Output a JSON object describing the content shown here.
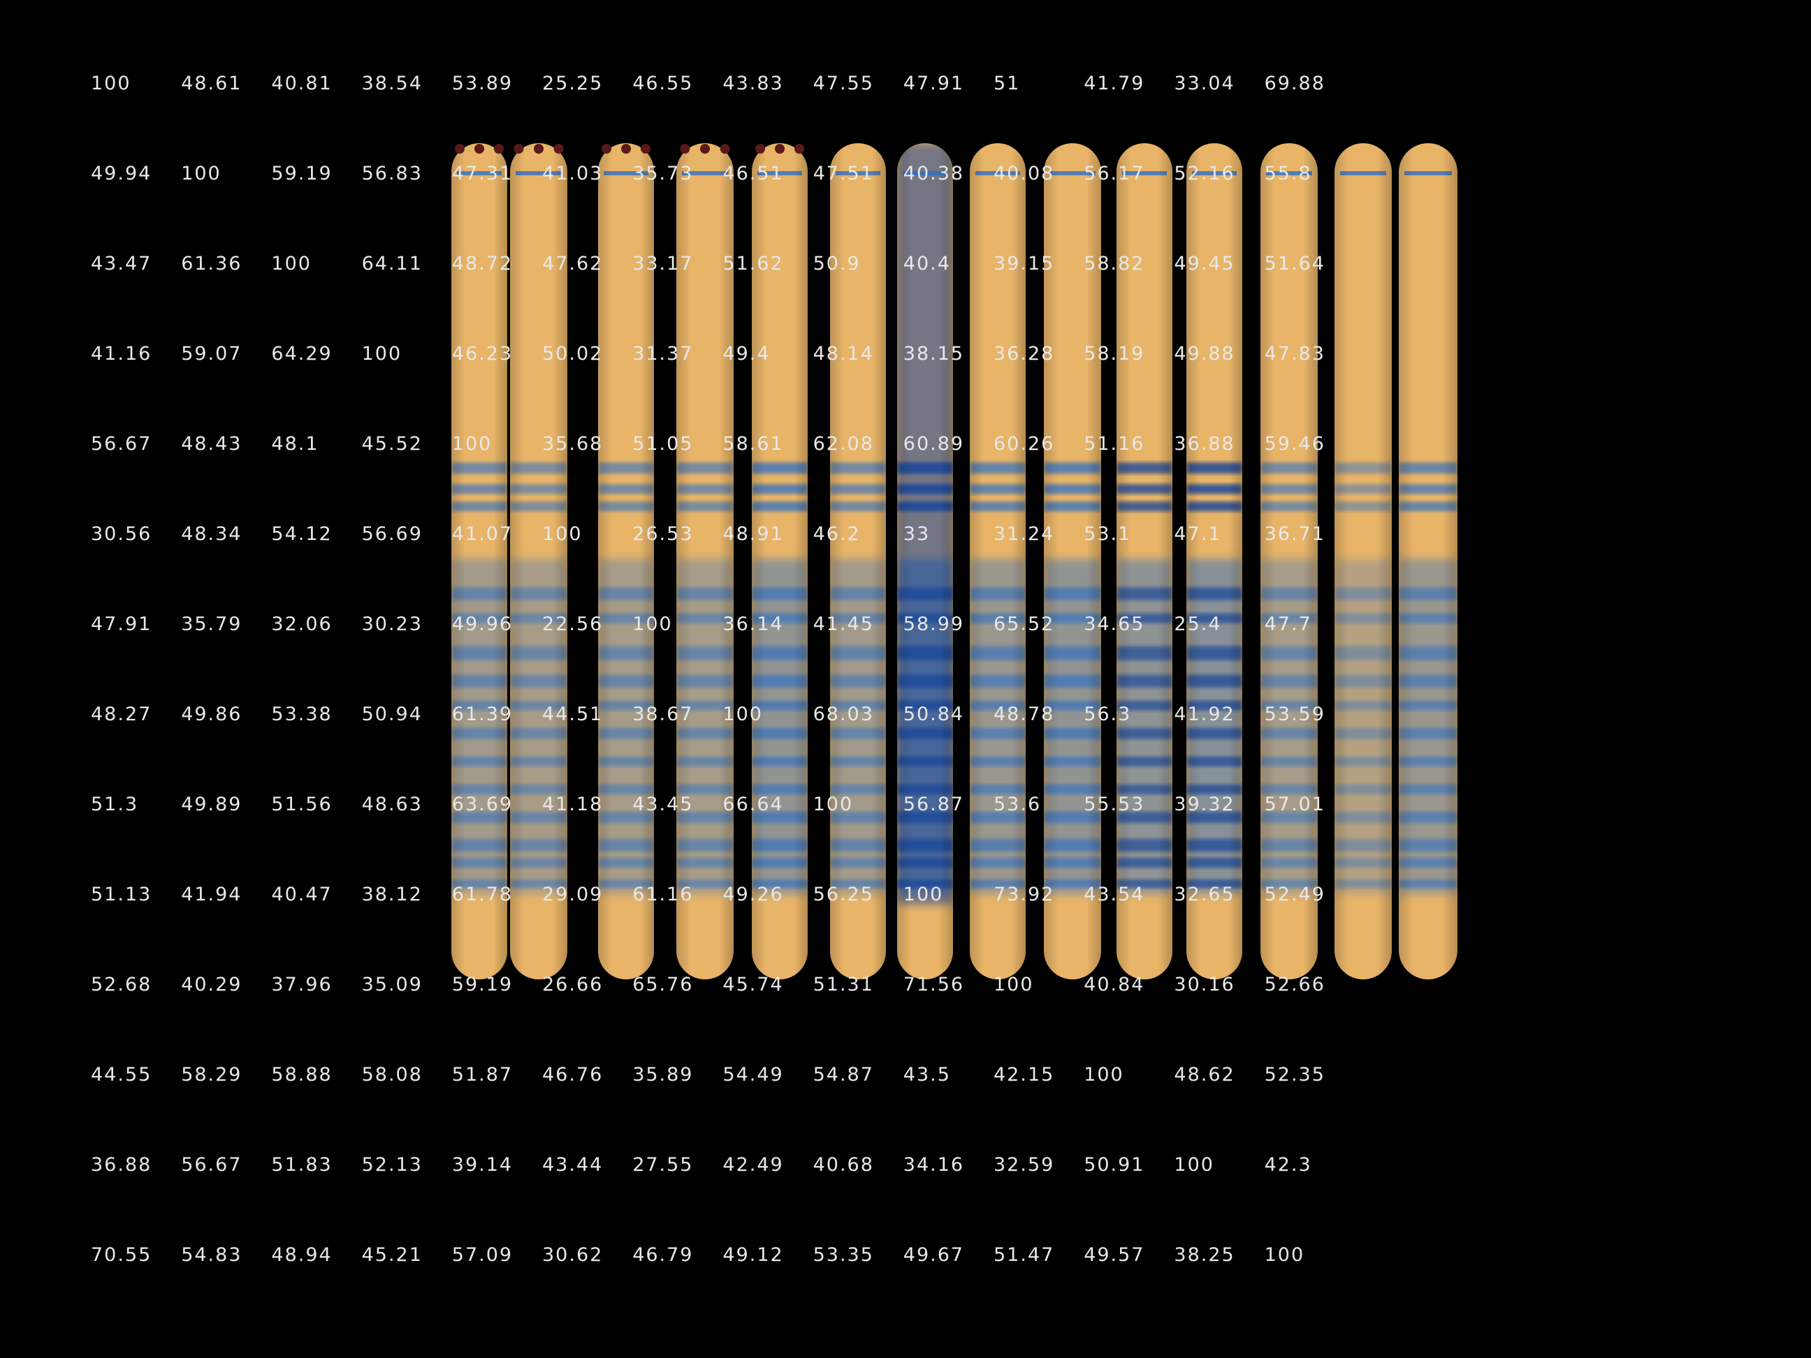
{
  "image": {
    "description_name": "gel-electrophoresis-tubes",
    "colors": {
      "background": "#000000",
      "gel_base": "#e8b468",
      "band_blue": "#2f6fc4",
      "dark_blue": "#14459b",
      "text": "#e8e8e8",
      "well_residue": "#5a1a1a"
    },
    "tube_count": 14
  },
  "matrix": {
    "rows": [
      [
        "100",
        "48.61",
        "40.81",
        "38.54",
        "53.89",
        "25.25",
        "46.55",
        "43.83",
        "47.55",
        "47.91",
        "51",
        "41.79",
        "33.04",
        "69.88"
      ],
      [
        "49.94",
        "100",
        "59.19",
        "56.83",
        "47.31",
        "41.03",
        "35.73",
        "46.51",
        "47.51",
        "40.38",
        "40.08",
        "56.17",
        "52.16",
        "55.8"
      ],
      [
        "43.47",
        "61.36",
        "100",
        "64.11",
        "48.72",
        "47.62",
        "33.17",
        "51.62",
        "50.9",
        "40.4",
        "39.15",
        "58.82",
        "49.45",
        "51.64"
      ],
      [
        "41.16",
        "59.07",
        "64.29",
        "100",
        "46.23",
        "50.02",
        "31.37",
        "49.4",
        "48.14",
        "38.15",
        "36.28",
        "58.19",
        "49.88",
        "47.83"
      ],
      [
        "56.67",
        "48.43",
        "48.1",
        "45.52",
        "100",
        "35.68",
        "51.05",
        "58.61",
        "62.08",
        "60.89",
        "60.26",
        "51.16",
        "36.88",
        "59.46"
      ],
      [
        "30.56",
        "48.34",
        "54.12",
        "56.69",
        "41.07",
        "100",
        "26.53",
        "48.91",
        "46.2",
        "33",
        "31.24",
        "53.1",
        "47.1",
        "36.71"
      ],
      [
        "47.91",
        "35.79",
        "32.06",
        "30.23",
        "49.96",
        "22.56",
        "100",
        "36.14",
        "41.45",
        "58.99",
        "65.52",
        "34.65",
        "25.4",
        "47.7"
      ],
      [
        "48.27",
        "49.86",
        "53.38",
        "50.94",
        "61.39",
        "44.51",
        "38.67",
        "100",
        "68.03",
        "50.84",
        "48.78",
        "56.3",
        "41.92",
        "53.59"
      ],
      [
        "51.3",
        "49.89",
        "51.56",
        "48.63",
        "63.69",
        "41.18",
        "43.45",
        "66.64",
        "100",
        "56.87",
        "53.6",
        "55.53",
        "39.32",
        "57.01"
      ],
      [
        "51.13",
        "41.94",
        "40.47",
        "38.12",
        "61.78",
        "29.09",
        "61.16",
        "49.26",
        "56.25",
        "100",
        "73.92",
        "43.54",
        "32.65",
        "52.49"
      ],
      [
        "52.68",
        "40.29",
        "37.96",
        "35.09",
        "59.19",
        "26.66",
        "65.76",
        "45.74",
        "51.31",
        "71.56",
        "100",
        "40.84",
        "30.16",
        "52.66"
      ],
      [
        "44.55",
        "58.29",
        "58.88",
        "58.08",
        "51.87",
        "46.76",
        "35.89",
        "54.49",
        "54.87",
        "43.5",
        "42.15",
        "100",
        "48.62",
        "52.35"
      ],
      [
        "36.88",
        "56.67",
        "51.83",
        "52.13",
        "39.14",
        "43.44",
        "27.55",
        "42.49",
        "40.68",
        "34.16",
        "32.59",
        "50.91",
        "100",
        "42.3"
      ],
      [
        "70.55",
        "54.83",
        "48.94",
        "45.21",
        "57.09",
        "30.62",
        "46.79",
        "49.12",
        "53.35",
        "49.67",
        "51.47",
        "49.57",
        "38.25",
        "100"
      ]
    ]
  }
}
